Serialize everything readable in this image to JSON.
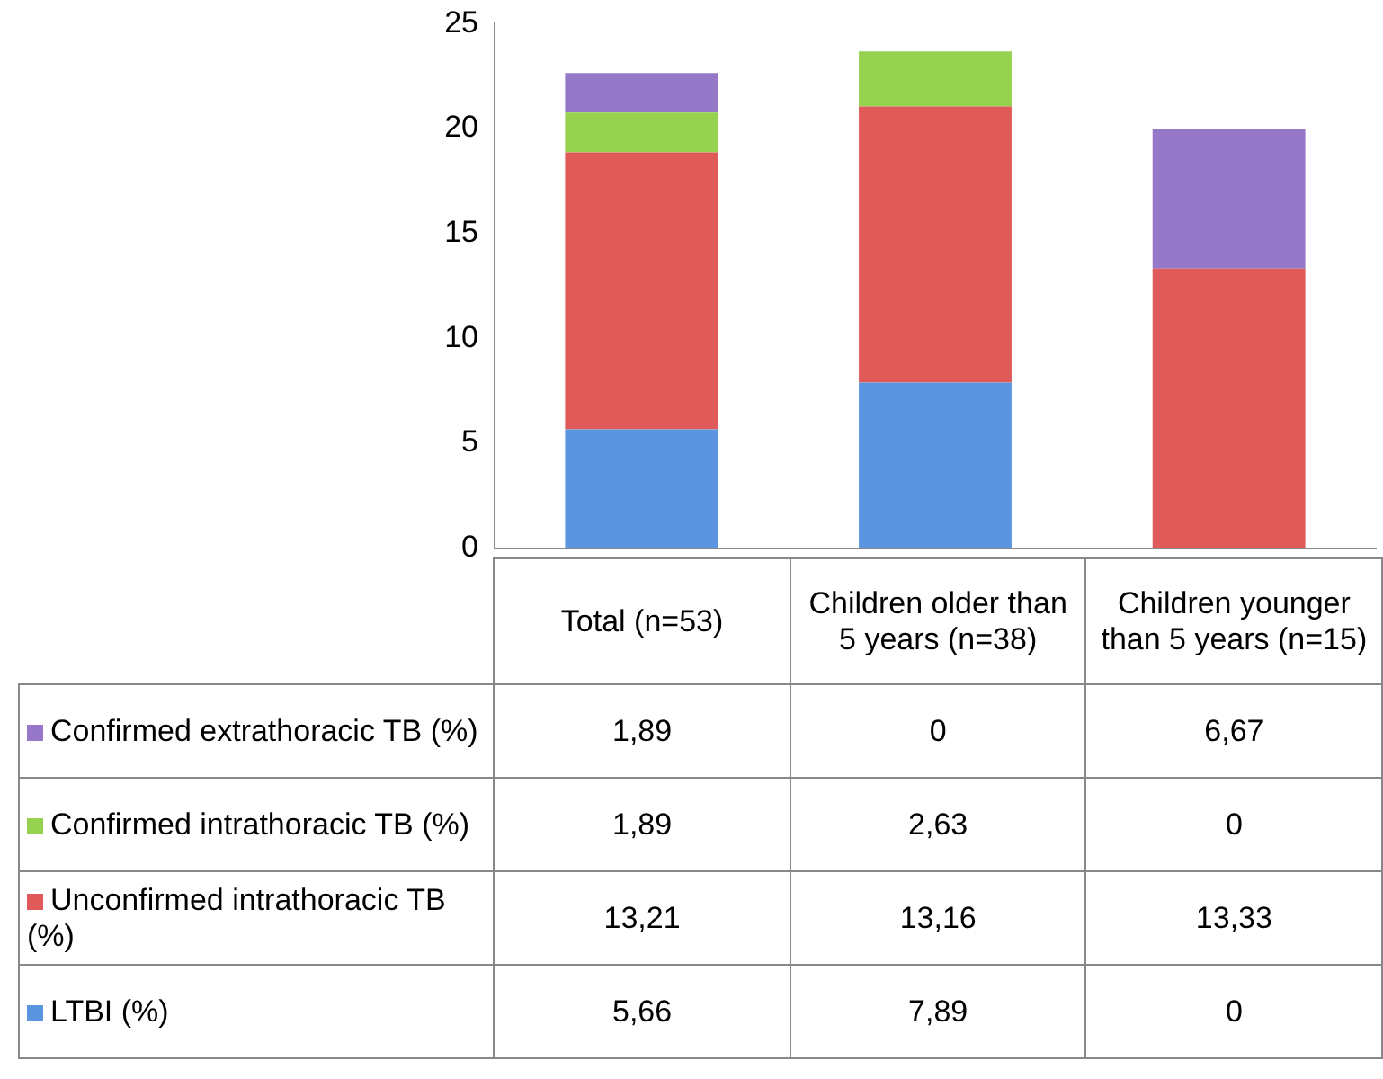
{
  "chart_data": {
    "type": "bar",
    "stacked": true,
    "categories": [
      "Total (n=53)",
      "Children older than 5 years (n=38)",
      "Children younger than 5 years (n=15)"
    ],
    "series": [
      {
        "name": "LTBI  (%)",
        "color": "#5b95e0",
        "values": [
          5.66,
          7.89,
          0
        ],
        "value_labels": [
          "5,66",
          "7,89",
          "0"
        ]
      },
      {
        "name": "Unconfirmed intrathoracic TB  (%)",
        "color": "#e05a5a",
        "values": [
          13.21,
          13.16,
          13.33
        ],
        "value_labels": [
          "13,21",
          "13,16",
          "13,33"
        ]
      },
      {
        "name": "Confirmed intrathoracic TB (%)",
        "color": "#96d250",
        "values": [
          1.89,
          2.63,
          0
        ],
        "value_labels": [
          "1,89",
          "2,63",
          "0"
        ]
      },
      {
        "name": "Confirmed extrathoracic TB (%)",
        "color": "#9678c8",
        "values": [
          1.89,
          0,
          6.67
        ],
        "value_labels": [
          "1,89",
          "0",
          "6,67"
        ]
      }
    ],
    "ylim": [
      0,
      25
    ],
    "yticks": [
      0,
      5,
      10,
      15,
      20,
      25
    ],
    "grid": false,
    "legend": "bottom"
  }
}
